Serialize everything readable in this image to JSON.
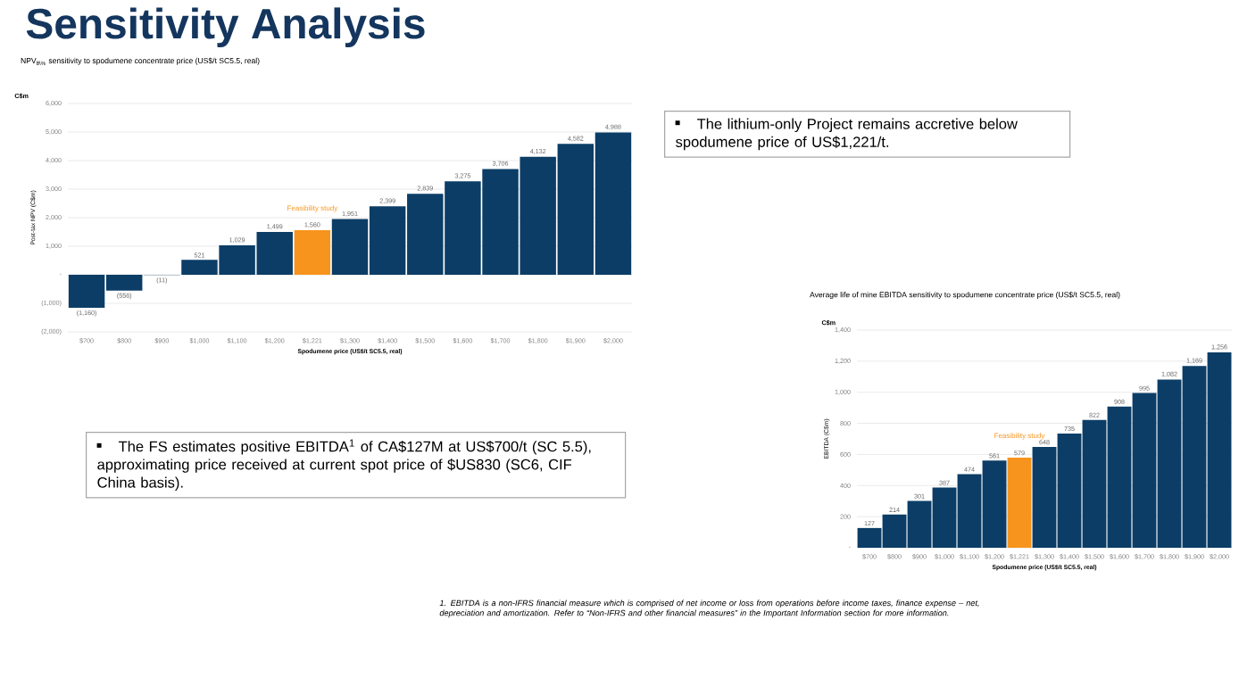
{
  "chart_data": [
    {
      "type": "other",
      "title": "Sensitivity Analysis",
      "annotations": [
        "The FS estimates positive EBITDA$^{1}$ of CA$127M at US$700/t (SC 5.5), approximating price received at current spot price of $US830 (SC6, CIF China basis).",
        "The lithium-only Project remains accretive below spodumene price of US$1,221/t.",
        "1. EBITDA is a non-IFRS financial measure which is comprised of net income or loss from operations before income taxes, finance expense – net, depreciation and amortization. Refer to “Non-IFRS and other financial measures” in the Important Information section for more information."
      ]
    },
    {
      "type": "bar",
      "title": "NPV$_{8\\%}$ sensitivity to spodumene concentrate price (US$/t SC5.5, real)",
      "xlabel": "Spodumene price (US$/t SC5.5, real)",
      "ylabel": "Post-tax NPV (C$m)",
      "categories": [
        "$700",
        "$800",
        "$900",
        "$1,000",
        "$1,100",
        "$1,200",
        "$1,221",
        "$1,300",
        "$1,400",
        "$1,500",
        "$1,600",
        "$1,700",
        "$1,800",
        "$1,900",
        "$2,000"
      ],
      "values": [
        -1160,
        -556,
        -11,
        521,
        1029,
        1499,
        1560,
        1951,
        2399,
        2839,
        3275,
        3706,
        4132,
        4582,
        4988
      ],
      "value_labels": [
        "(1,160)",
        "(556)",
        "(11)",
        "521",
        "1,029",
        "1,499",
        "1,560",
        "1,951",
        "2,399",
        "2,839",
        "3,275",
        "3,706",
        "4,132",
        "4,582",
        "4,988"
      ],
      "colors": [
        "#0b3d66",
        "#0b3d66",
        "#0b3d66",
        "#0b3d66",
        "#0b3d66",
        "#0b3d66",
        "#f7941d",
        "#0b3d66",
        "#0b3d66",
        "#0b3d66",
        "#0b3d66",
        "#0b3d66",
        "#0b3d66",
        "#0b3d66",
        "#0b3d66"
      ],
      "ylim": [
        -2000,
        6000
      ],
      "yticks": [
        {
          "value": -2000,
          "label": "(2,000)"
        },
        {
          "value": -1000,
          "label": "(1,000)"
        },
        {
          "value": 0,
          "label": "-"
        },
        {
          "value": 1000,
          "label": "1,000"
        },
        {
          "value": 2000,
          "label": "2,000"
        },
        {
          "value": 3000,
          "label": "3,000"
        },
        {
          "value": 4000,
          "label": "4,000"
        },
        {
          "value": 5000,
          "label": "5,000"
        },
        {
          "value": 6000,
          "label": "6,000"
        }
      ],
      "grid": "y",
      "annotations": [
        "C$m",
        "Feasibility study"
      ]
    },
    {
      "type": "bar",
      "title": "Average life of mine EBITDA sensitivity to spodumene concentrate price (US$/t SC5.5, real)",
      "xlabel": "Spodumene price (US$/t SC5.5, real)",
      "ylabel": "EBITDA (C$m)",
      "categories": [
        "$700",
        "$800",
        "$900",
        "$1,000",
        "$1,100",
        "$1,200",
        "$1,221",
        "$1,300",
        "$1,400",
        "$1,500",
        "$1,600",
        "$1,700",
        "$1,800",
        "$1,900",
        "$2,000"
      ],
      "values": [
        127,
        214,
        301,
        387,
        474,
        561,
        579,
        648,
        735,
        822,
        908,
        995,
        1082,
        1169,
        1256
      ],
      "value_labels": [
        "127",
        "214",
        "301",
        "387",
        "474",
        "561",
        "579",
        "648",
        "735",
        "822",
        "908",
        "995",
        "1,082",
        "1,169",
        "1,256"
      ],
      "colors": [
        "#0b3d66",
        "#0b3d66",
        "#0b3d66",
        "#0b3d66",
        "#0b3d66",
        "#0b3d66",
        "#f7941d",
        "#0b3d66",
        "#0b3d66",
        "#0b3d66",
        "#0b3d66",
        "#0b3d66",
        "#0b3d66",
        "#0b3d66",
        "#0b3d66"
      ],
      "ylim": [
        0,
        1400
      ],
      "yticks": [
        {
          "value": 0,
          "label": "-"
        },
        {
          "value": 200,
          "label": "200"
        },
        {
          "value": 400,
          "label": "400"
        },
        {
          "value": 600,
          "label": "600"
        },
        {
          "value": 800,
          "label": "800"
        },
        {
          "value": 1000,
          "label": "1,000"
        },
        {
          "value": 1200,
          "label": "1,200"
        },
        {
          "value": 1400,
          "label": "1,400"
        }
      ],
      "grid": "y",
      "annotations": [
        "C$m",
        "Feasibility study"
      ]
    }
  ]
}
